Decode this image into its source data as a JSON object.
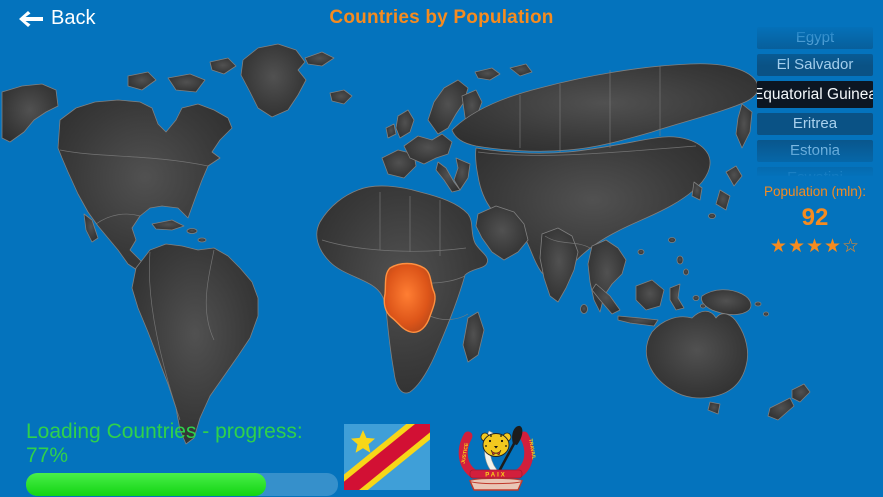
{
  "app": {
    "background_color": "#0473BD"
  },
  "header": {
    "back_label": "Back",
    "title": "Countries by Population",
    "title_color": "#F68B1F"
  },
  "picker": {
    "selected_index": 2,
    "items": [
      {
        "label": "Egypt"
      },
      {
        "label": "El Salvador"
      },
      {
        "label": "Equatorial Guinea"
      },
      {
        "label": "Eritrea"
      },
      {
        "label": "Estonia"
      },
      {
        "label": "Eswatini"
      }
    ]
  },
  "stats": {
    "population_label": "Population (mln):",
    "population_value": "92",
    "rating_stars": "★★★★☆",
    "rating_filled": 4,
    "rating_total": 5,
    "accent_color": "#F68B1F"
  },
  "loading": {
    "text": "Loading Countries - progress: 77%",
    "percent": 77,
    "text_color": "#2FD14B",
    "bar_color": "#1FE01F"
  },
  "map": {
    "highlighted_country": "Democratic Republic of the Congo",
    "land_color": "#3C3C3C",
    "highlight_color": "#E0571C"
  },
  "flag": {
    "country": "Democratic Republic of the Congo"
  },
  "coat_of_arms": {
    "motto_left": "JUSTICE",
    "motto_center": "PAIX",
    "motto_right": "TRAVAIL"
  }
}
